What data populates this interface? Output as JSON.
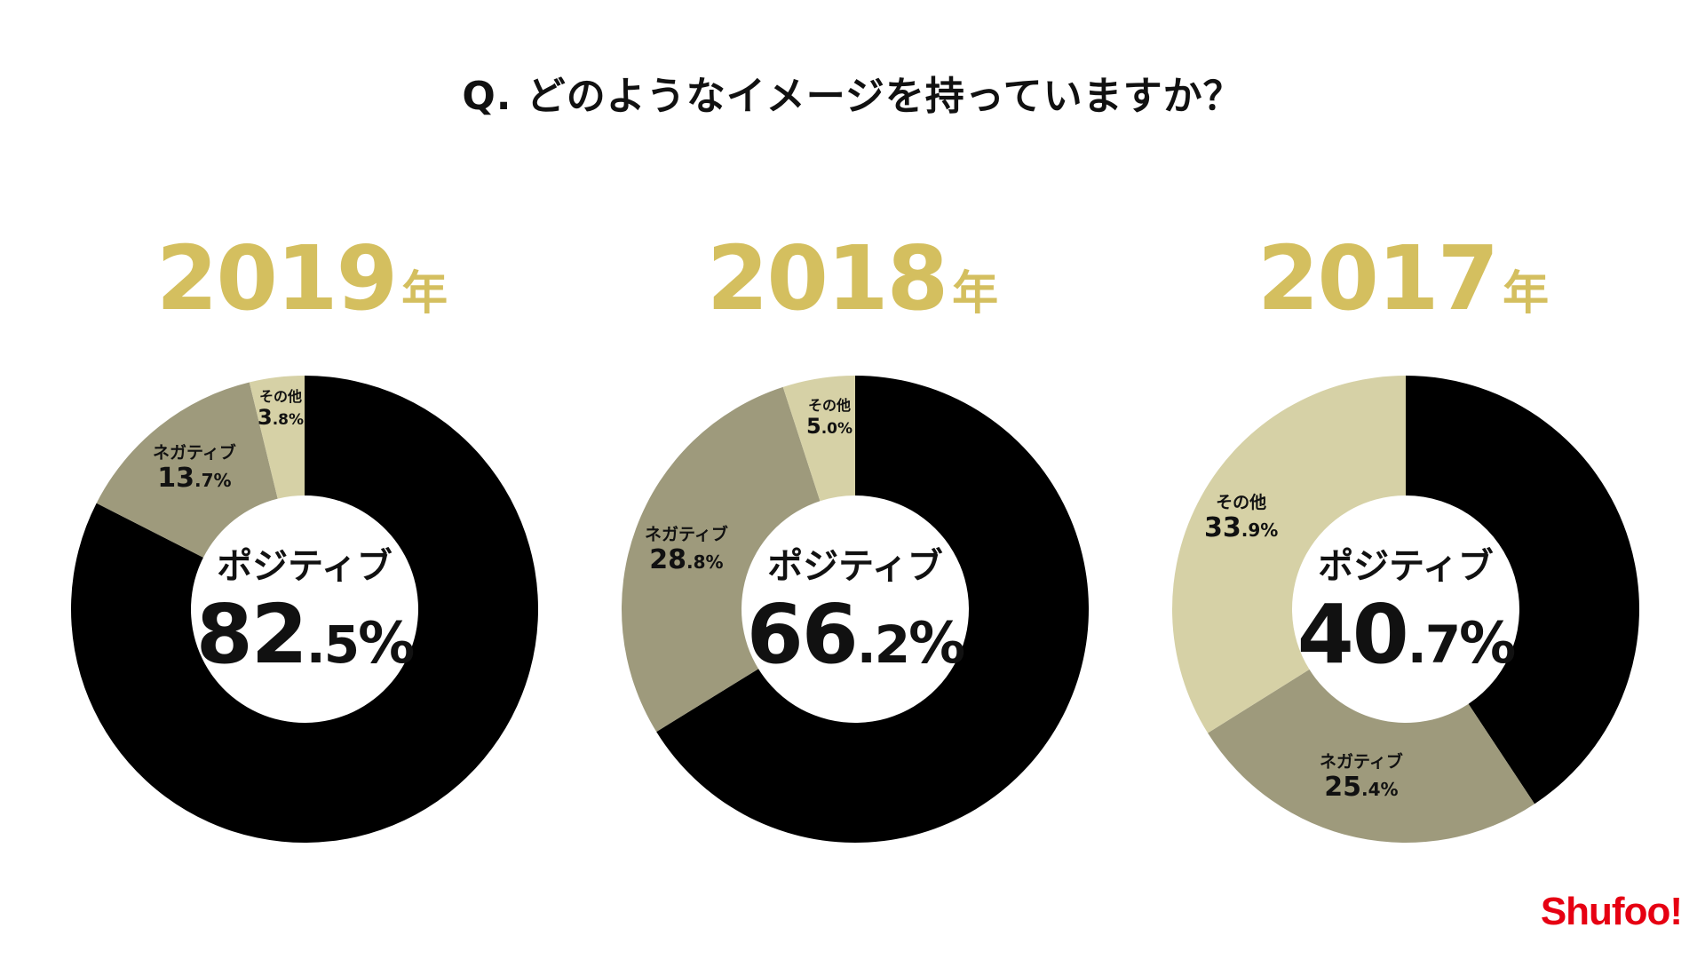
{
  "title": "Q. どのようなイメージを持っていますか？",
  "logo": "Shufoo!",
  "colors": {
    "positive": "#000000",
    "negative": "#9e9a7c",
    "other": "#d6d1a6",
    "year": "#d4bf5f",
    "logo": "#e60012"
  },
  "charts": [
    {
      "year": "2019",
      "year_suffix": "年",
      "center_label": "ポジティブ",
      "center_int": "82",
      "center_dec": ".5",
      "center_unit": "%",
      "slices": [
        {
          "name": "ポジティブ",
          "int": "82",
          "dec": ".5%"
        },
        {
          "name": "ネガティブ",
          "int": "13",
          "dec": ".7%"
        },
        {
          "name": "その他",
          "int": "3",
          "dec": ".8%"
        }
      ]
    },
    {
      "year": "2018",
      "year_suffix": "年",
      "center_label": "ポジティブ",
      "center_int": "66",
      "center_dec": ".2",
      "center_unit": "%",
      "slices": [
        {
          "name": "ポジティブ",
          "int": "66",
          "dec": ".2%"
        },
        {
          "name": "ネガティブ",
          "int": "28",
          "dec": ".8%"
        },
        {
          "name": "その他",
          "int": "5",
          "dec": ".0%"
        }
      ]
    },
    {
      "year": "2017",
      "year_suffix": "年",
      "center_label": "ポジティブ",
      "center_int": "40",
      "center_dec": ".7",
      "center_unit": "%",
      "slices": [
        {
          "name": "ポジティブ",
          "int": "40",
          "dec": ".7%"
        },
        {
          "name": "ネガティブ",
          "int": "25",
          "dec": ".4%"
        },
        {
          "name": "その他",
          "int": "33",
          "dec": ".9%"
        }
      ]
    }
  ],
  "chart_data": [
    {
      "type": "pie",
      "title": "2019年",
      "categories": [
        "ポジティブ",
        "ネガティブ",
        "その他"
      ],
      "values": [
        82.5,
        13.7,
        3.8
      ]
    },
    {
      "type": "pie",
      "title": "2018年",
      "categories": [
        "ポジティブ",
        "ネガティブ",
        "その他"
      ],
      "values": [
        66.2,
        28.8,
        5.0
      ]
    },
    {
      "type": "pie",
      "title": "2017年",
      "categories": [
        "ポジティブ",
        "ネガティブ",
        "その他"
      ],
      "values": [
        40.7,
        25.4,
        33.9
      ]
    }
  ]
}
